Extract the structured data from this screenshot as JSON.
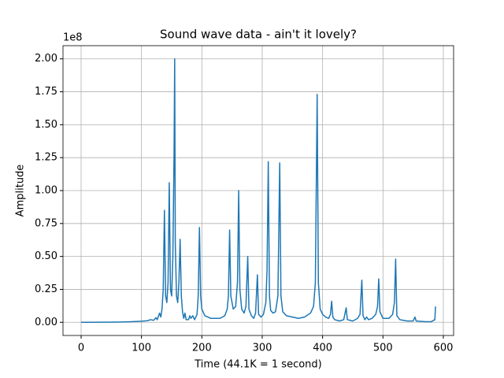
{
  "chart_data": {
    "type": "line",
    "title": "Sound wave data - ain't it lovely?",
    "x_label": "Time (44.1K = 1 second)",
    "y_label": "Amplitude",
    "y_offset_label": "1e8",
    "grid": true,
    "xlim": [
      -30,
      617
    ],
    "ylim": [
      -0.1,
      2.1
    ],
    "xticks": [
      0,
      100,
      200,
      300,
      400,
      500,
      600
    ],
    "yticks": [
      {
        "value": 0,
        "label": "0.00"
      },
      {
        "value": 0.25,
        "label": "0.25"
      },
      {
        "value": 0.5,
        "label": "0.50"
      },
      {
        "value": 0.75,
        "label": "0.75"
      },
      {
        "value": 1,
        "label": "1.00"
      },
      {
        "value": 1.25,
        "label": "1.25"
      },
      {
        "value": 1.5,
        "label": "1.50"
      },
      {
        "value": 1.75,
        "label": "1.75"
      },
      {
        "value": 2,
        "label": "2.00"
      }
    ],
    "x": [
      0,
      20,
      40,
      60,
      80,
      100,
      110,
      115,
      120,
      124,
      126,
      130,
      132,
      134,
      136,
      138,
      140,
      142,
      144,
      146,
      148,
      150,
      152,
      154,
      155,
      156,
      158,
      160,
      162,
      164,
      166,
      168,
      170,
      172,
      174,
      178,
      180,
      182,
      185,
      188,
      192,
      194,
      196,
      198,
      200,
      205,
      215,
      230,
      238,
      242,
      244,
      246,
      248,
      252,
      256,
      259,
      261,
      263,
      266,
      270,
      273,
      276,
      278,
      282,
      286,
      289,
      292,
      294,
      298,
      302,
      306,
      308,
      310,
      312,
      314,
      318,
      322,
      326,
      329,
      331,
      334,
      340,
      350,
      360,
      370,
      380,
      385,
      388,
      391,
      393,
      396,
      400,
      405,
      410,
      413,
      415,
      417,
      420,
      428,
      435,
      439,
      441,
      450,
      458,
      462,
      465,
      467,
      470,
      473,
      476,
      482,
      488,
      491,
      493,
      495,
      500,
      510,
      516,
      519,
      521,
      523,
      528,
      540,
      550,
      553,
      555,
      570,
      580,
      586,
      587
    ],
    "series": [
      {
        "color": "#1f77b4",
        "values": [
          0,
          0,
          0.001,
          0.002,
          0.004,
          0.008,
          0.012,
          0.02,
          0.015,
          0.035,
          0.02,
          0.07,
          0.04,
          0.1,
          0.25,
          0.85,
          0.2,
          0.15,
          0.3,
          1.06,
          0.25,
          0.2,
          0.5,
          1.3,
          2.0,
          0.6,
          0.2,
          0.15,
          0.3,
          0.63,
          0.2,
          0.08,
          0.03,
          0.07,
          0.02,
          0.02,
          0.05,
          0.03,
          0.05,
          0.02,
          0.06,
          0.2,
          0.72,
          0.2,
          0.1,
          0.05,
          0.03,
          0.03,
          0.05,
          0.1,
          0.2,
          0.7,
          0.2,
          0.1,
          0.12,
          0.3,
          1.0,
          0.25,
          0.1,
          0.07,
          0.12,
          0.5,
          0.1,
          0.05,
          0.03,
          0.07,
          0.36,
          0.06,
          0.04,
          0.06,
          0.15,
          0.4,
          1.22,
          0.2,
          0.09,
          0.07,
          0.08,
          0.2,
          1.21,
          0.2,
          0.08,
          0.05,
          0.04,
          0.03,
          0.04,
          0.07,
          0.12,
          0.3,
          1.73,
          0.3,
          0.1,
          0.06,
          0.04,
          0.03,
          0.06,
          0.16,
          0.04,
          0.02,
          0.01,
          0.02,
          0.11,
          0.02,
          0.01,
          0.03,
          0.06,
          0.32,
          0.05,
          0.02,
          0.04,
          0.02,
          0.03,
          0.06,
          0.12,
          0.33,
          0.08,
          0.03,
          0.03,
          0.06,
          0.15,
          0.48,
          0.05,
          0.02,
          0.01,
          0.01,
          0.04,
          0.01,
          0.005,
          0.005,
          0.02,
          0.12
        ]
      }
    ]
  }
}
